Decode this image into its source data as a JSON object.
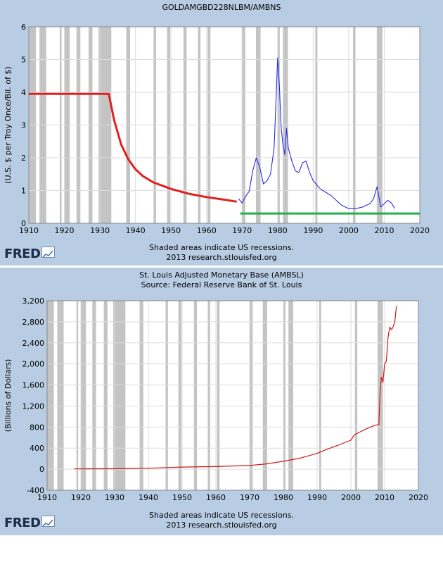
{
  "charts": [
    {
      "title": [
        "GOLDAMGBD228NLBM/AMBNS"
      ],
      "footer": [
        "Shaded areas indicate US recessions.",
        "2013 research.stlouisfed.org"
      ],
      "logo": "FRED",
      "logo_icon": "mini-chart-icon"
    },
    {
      "title": [
        "St. Louis Adjusted Monetary Base (AMBSL)",
        "Source: Federal Reserve Bank of St. Louis"
      ],
      "footer": [
        "Shaded areas indicate US recessions.",
        "2013 research.stlouisfed.org"
      ],
      "logo": "FRED",
      "logo_icon": "mini-chart-icon"
    }
  ],
  "chart_data": [
    {
      "type": "line",
      "title": "GOLDAMGBD228NLBM/AMBNS",
      "xlabel": "",
      "ylabel": "(U.S. $ per Troy Once/Bil. of $)",
      "xlim": [
        1910,
        2020
      ],
      "ylim": [
        0,
        6
      ],
      "xticks": [
        1910,
        1920,
        1930,
        1940,
        1950,
        1960,
        1970,
        1980,
        1990,
        2000,
        2010,
        2020
      ],
      "yticks": [
        0,
        1,
        2,
        3,
        4,
        5,
        6
      ],
      "grid": true,
      "recession_shading": true,
      "series": [
        {
          "color": "#e02020",
          "x": [
            1910,
            1915,
            1920,
            1925,
            1930,
            1932.5,
            1934,
            1936,
            1938,
            1940,
            1942,
            1945,
            1950,
            1955,
            1960,
            1965,
            1968.5
          ],
          "y": [
            3.95,
            3.95,
            3.95,
            3.95,
            3.95,
            3.95,
            3.15,
            2.4,
            1.95,
            1.65,
            1.45,
            1.25,
            1.05,
            0.9,
            0.8,
            0.72,
            0.66
          ]
        },
        {
          "color": "#2a2ae6",
          "x": [
            1969,
            1970,
            1971,
            1972,
            1973,
            1974,
            1975,
            1976,
            1977,
            1978,
            1979,
            1979.6,
            1980,
            1980.5,
            1981,
            1981.5,
            1982,
            1982.5,
            1983,
            1984,
            1985,
            1986,
            1987,
            1988,
            1989,
            1990,
            1992,
            1995,
            1998,
            2000,
            2002,
            2004,
            2006,
            2007,
            2008,
            2008.5,
            2009,
            2010,
            2011,
            2012,
            2013
          ],
          "y": [
            0.75,
            0.62,
            0.82,
            0.98,
            1.6,
            2.0,
            1.7,
            1.2,
            1.3,
            1.5,
            2.3,
            3.9,
            5.05,
            4.2,
            2.9,
            2.4,
            2.1,
            2.9,
            2.3,
            1.9,
            1.6,
            1.55,
            1.85,
            1.9,
            1.55,
            1.3,
            1.05,
            0.85,
            0.55,
            0.45,
            0.45,
            0.5,
            0.6,
            0.75,
            1.12,
            0.8,
            0.5,
            0.6,
            0.7,
            0.62,
            0.45
          ]
        },
        {
          "color": "#22b04a",
          "x": [
            1969.5,
            2020
          ],
          "y": [
            0.3,
            0.3
          ]
        }
      ]
    },
    {
      "type": "line",
      "title": "St. Louis Adjusted Monetary Base (AMBSL)",
      "subtitle": "Source: Federal Reserve Bank of St. Louis",
      "xlabel": "",
      "ylabel": "(Billions of Dollars)",
      "xlim": [
        1910,
        2020
      ],
      "ylim": [
        -400,
        3200
      ],
      "xticks": [
        1910,
        1920,
        1930,
        1940,
        1950,
        1960,
        1970,
        1980,
        1990,
        2000,
        2010,
        2020
      ],
      "yticks": [
        -400,
        0,
        400,
        800,
        1200,
        1600,
        2000,
        2400,
        2800,
        3200
      ],
      "ytick_labels": [
        "-400",
        "0",
        "400",
        "800",
        "1,200",
        "1,600",
        "2,000",
        "2,400",
        "2,800",
        "3,200"
      ],
      "grid": true,
      "recession_shading": true,
      "series": [
        {
          "color": "#cc1a1a",
          "x": [
            1918,
            1930,
            1940,
            1950,
            1960,
            1965,
            1970,
            1975,
            1980,
            1985,
            1990,
            1993,
            1996,
            2000,
            2001,
            2004,
            2007,
            2008.3,
            2008.6,
            2009,
            2009.5,
            2010,
            2010.5,
            2011,
            2011.5,
            2012,
            2012.5,
            2013,
            2013.5
          ],
          "y": [
            5,
            8,
            18,
            40,
            50,
            60,
            70,
            100,
            150,
            210,
            300,
            380,
            450,
            550,
            650,
            750,
            830,
            850,
            1400,
            1750,
            1650,
            2000,
            2050,
            2500,
            2700,
            2650,
            2700,
            2800,
            3100
          ]
        }
      ]
    }
  ],
  "recessions": [
    [
      1910.1,
      1912.0
    ],
    [
      1913.0,
      1914.9
    ],
    [
      1918.7,
      1919.2
    ],
    [
      1920.1,
      1921.5
    ],
    [
      1923.4,
      1924.5
    ],
    [
      1926.8,
      1927.9
    ],
    [
      1929.6,
      1933.2
    ],
    [
      1937.4,
      1938.5
    ],
    [
      1945.1,
      1945.8
    ],
    [
      1948.9,
      1949.8
    ],
    [
      1953.5,
      1954.4
    ],
    [
      1957.6,
      1958.3
    ],
    [
      1960.3,
      1961.1
    ],
    [
      1969.9,
      1970.9
    ],
    [
      1973.9,
      1975.2
    ],
    [
      1980.0,
      1980.6
    ],
    [
      1981.5,
      1982.9
    ],
    [
      1990.6,
      1991.2
    ],
    [
      2001.2,
      2001.9
    ],
    [
      2007.9,
      2009.5
    ]
  ]
}
